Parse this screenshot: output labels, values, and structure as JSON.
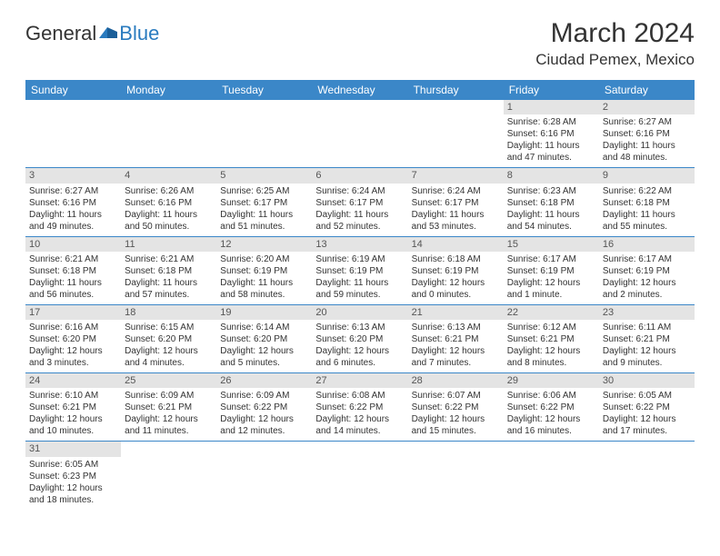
{
  "logo": {
    "text1": "General",
    "text2": "Blue"
  },
  "title": "March 2024",
  "location": "Ciudad Pemex, Mexico",
  "header_bg": "#3b87c8",
  "weekdays": [
    "Sunday",
    "Monday",
    "Tuesday",
    "Wednesday",
    "Thursday",
    "Friday",
    "Saturday"
  ],
  "weeks": [
    [
      {
        "n": "",
        "lines": []
      },
      {
        "n": "",
        "lines": []
      },
      {
        "n": "",
        "lines": []
      },
      {
        "n": "",
        "lines": []
      },
      {
        "n": "",
        "lines": []
      },
      {
        "n": "1",
        "lines": [
          "Sunrise: 6:28 AM",
          "Sunset: 6:16 PM",
          "Daylight: 11 hours and 47 minutes."
        ]
      },
      {
        "n": "2",
        "lines": [
          "Sunrise: 6:27 AM",
          "Sunset: 6:16 PM",
          "Daylight: 11 hours and 48 minutes."
        ]
      }
    ],
    [
      {
        "n": "3",
        "lines": [
          "Sunrise: 6:27 AM",
          "Sunset: 6:16 PM",
          "Daylight: 11 hours and 49 minutes."
        ]
      },
      {
        "n": "4",
        "lines": [
          "Sunrise: 6:26 AM",
          "Sunset: 6:16 PM",
          "Daylight: 11 hours and 50 minutes."
        ]
      },
      {
        "n": "5",
        "lines": [
          "Sunrise: 6:25 AM",
          "Sunset: 6:17 PM",
          "Daylight: 11 hours and 51 minutes."
        ]
      },
      {
        "n": "6",
        "lines": [
          "Sunrise: 6:24 AM",
          "Sunset: 6:17 PM",
          "Daylight: 11 hours and 52 minutes."
        ]
      },
      {
        "n": "7",
        "lines": [
          "Sunrise: 6:24 AM",
          "Sunset: 6:17 PM",
          "Daylight: 11 hours and 53 minutes."
        ]
      },
      {
        "n": "8",
        "lines": [
          "Sunrise: 6:23 AM",
          "Sunset: 6:18 PM",
          "Daylight: 11 hours and 54 minutes."
        ]
      },
      {
        "n": "9",
        "lines": [
          "Sunrise: 6:22 AM",
          "Sunset: 6:18 PM",
          "Daylight: 11 hours and 55 minutes."
        ]
      }
    ],
    [
      {
        "n": "10",
        "lines": [
          "Sunrise: 6:21 AM",
          "Sunset: 6:18 PM",
          "Daylight: 11 hours and 56 minutes."
        ]
      },
      {
        "n": "11",
        "lines": [
          "Sunrise: 6:21 AM",
          "Sunset: 6:18 PM",
          "Daylight: 11 hours and 57 minutes."
        ]
      },
      {
        "n": "12",
        "lines": [
          "Sunrise: 6:20 AM",
          "Sunset: 6:19 PM",
          "Daylight: 11 hours and 58 minutes."
        ]
      },
      {
        "n": "13",
        "lines": [
          "Sunrise: 6:19 AM",
          "Sunset: 6:19 PM",
          "Daylight: 11 hours and 59 minutes."
        ]
      },
      {
        "n": "14",
        "lines": [
          "Sunrise: 6:18 AM",
          "Sunset: 6:19 PM",
          "Daylight: 12 hours and 0 minutes."
        ]
      },
      {
        "n": "15",
        "lines": [
          "Sunrise: 6:17 AM",
          "Sunset: 6:19 PM",
          "Daylight: 12 hours and 1 minute."
        ]
      },
      {
        "n": "16",
        "lines": [
          "Sunrise: 6:17 AM",
          "Sunset: 6:19 PM",
          "Daylight: 12 hours and 2 minutes."
        ]
      }
    ],
    [
      {
        "n": "17",
        "lines": [
          "Sunrise: 6:16 AM",
          "Sunset: 6:20 PM",
          "Daylight: 12 hours and 3 minutes."
        ]
      },
      {
        "n": "18",
        "lines": [
          "Sunrise: 6:15 AM",
          "Sunset: 6:20 PM",
          "Daylight: 12 hours and 4 minutes."
        ]
      },
      {
        "n": "19",
        "lines": [
          "Sunrise: 6:14 AM",
          "Sunset: 6:20 PM",
          "Daylight: 12 hours and 5 minutes."
        ]
      },
      {
        "n": "20",
        "lines": [
          "Sunrise: 6:13 AM",
          "Sunset: 6:20 PM",
          "Daylight: 12 hours and 6 minutes."
        ]
      },
      {
        "n": "21",
        "lines": [
          "Sunrise: 6:13 AM",
          "Sunset: 6:21 PM",
          "Daylight: 12 hours and 7 minutes."
        ]
      },
      {
        "n": "22",
        "lines": [
          "Sunrise: 6:12 AM",
          "Sunset: 6:21 PM",
          "Daylight: 12 hours and 8 minutes."
        ]
      },
      {
        "n": "23",
        "lines": [
          "Sunrise: 6:11 AM",
          "Sunset: 6:21 PM",
          "Daylight: 12 hours and 9 minutes."
        ]
      }
    ],
    [
      {
        "n": "24",
        "lines": [
          "Sunrise: 6:10 AM",
          "Sunset: 6:21 PM",
          "Daylight: 12 hours and 10 minutes."
        ]
      },
      {
        "n": "25",
        "lines": [
          "Sunrise: 6:09 AM",
          "Sunset: 6:21 PM",
          "Daylight: 12 hours and 11 minutes."
        ]
      },
      {
        "n": "26",
        "lines": [
          "Sunrise: 6:09 AM",
          "Sunset: 6:22 PM",
          "Daylight: 12 hours and 12 minutes."
        ]
      },
      {
        "n": "27",
        "lines": [
          "Sunrise: 6:08 AM",
          "Sunset: 6:22 PM",
          "Daylight: 12 hours and 14 minutes."
        ]
      },
      {
        "n": "28",
        "lines": [
          "Sunrise: 6:07 AM",
          "Sunset: 6:22 PM",
          "Daylight: 12 hours and 15 minutes."
        ]
      },
      {
        "n": "29",
        "lines": [
          "Sunrise: 6:06 AM",
          "Sunset: 6:22 PM",
          "Daylight: 12 hours and 16 minutes."
        ]
      },
      {
        "n": "30",
        "lines": [
          "Sunrise: 6:05 AM",
          "Sunset: 6:22 PM",
          "Daylight: 12 hours and 17 minutes."
        ]
      }
    ],
    [
      {
        "n": "31",
        "lines": [
          "Sunrise: 6:05 AM",
          "Sunset: 6:23 PM",
          "Daylight: 12 hours and 18 minutes."
        ]
      },
      {
        "n": "",
        "lines": []
      },
      {
        "n": "",
        "lines": []
      },
      {
        "n": "",
        "lines": []
      },
      {
        "n": "",
        "lines": []
      },
      {
        "n": "",
        "lines": []
      },
      {
        "n": "",
        "lines": []
      }
    ]
  ]
}
